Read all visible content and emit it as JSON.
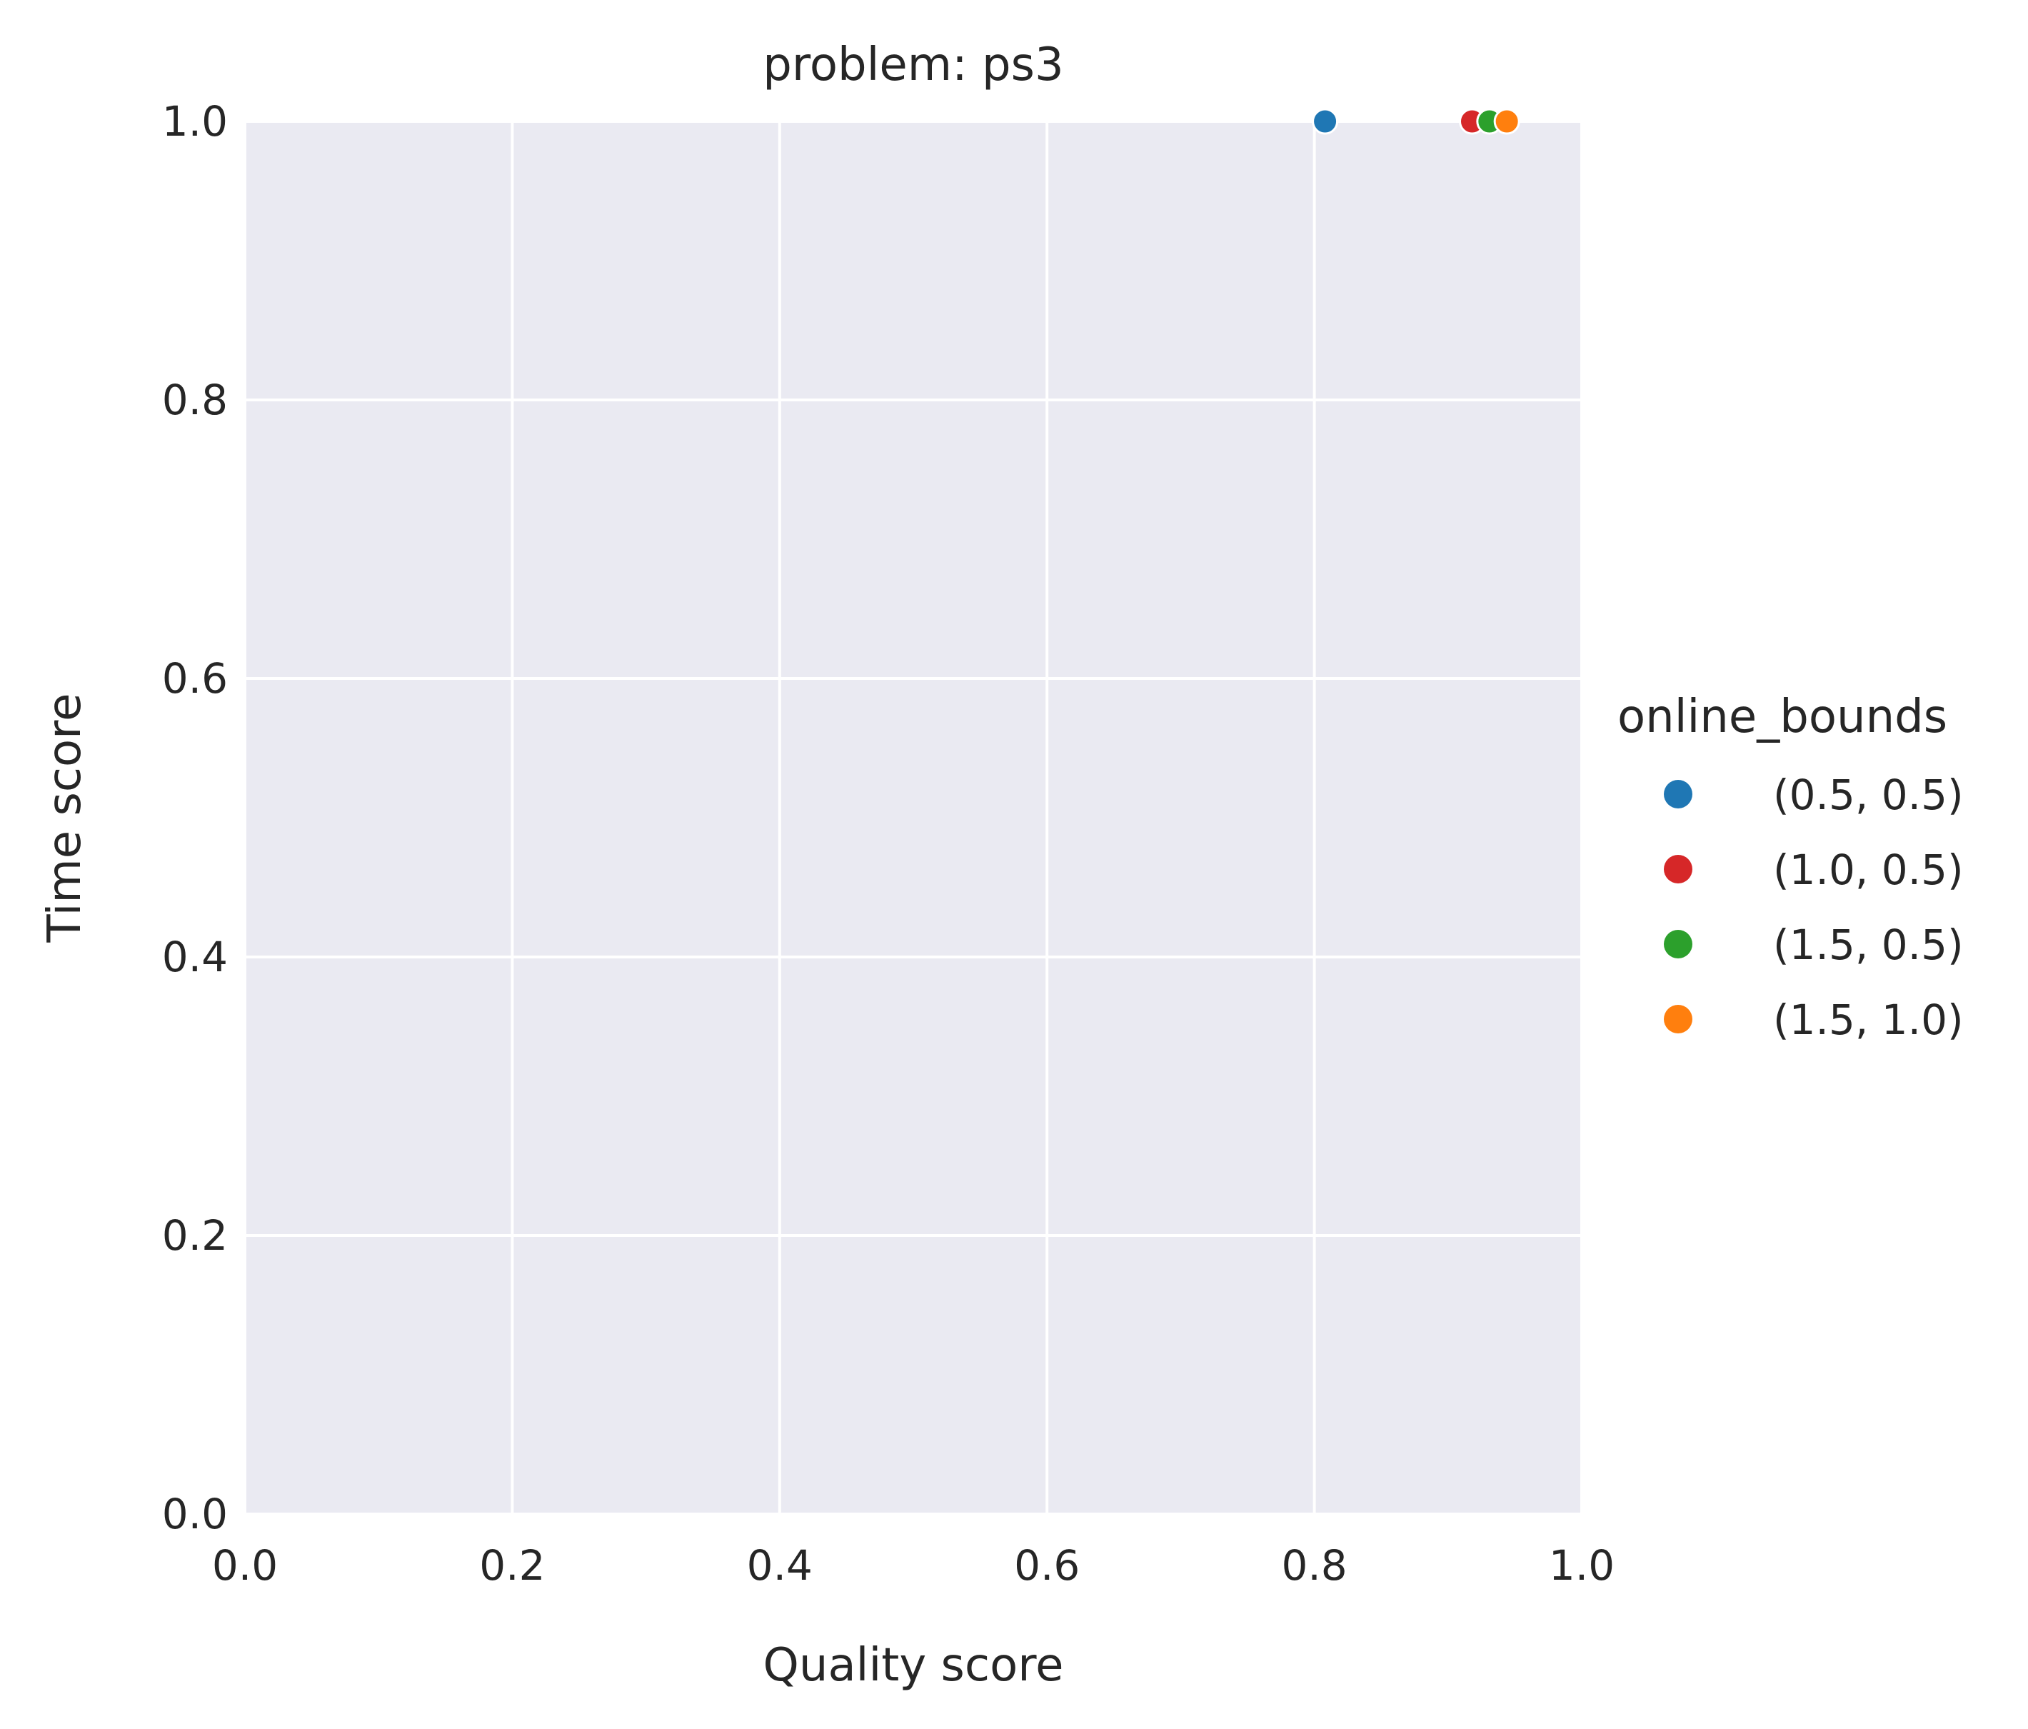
{
  "chart_data": {
    "type": "scatter",
    "title": "problem: ps3",
    "xlabel": "Quality score",
    "ylabel": "Time score",
    "xlim": [
      0.0,
      1.0
    ],
    "ylim": [
      0.0,
      1.0
    ],
    "xticks": [
      "0.0",
      "0.2",
      "0.4",
      "0.6",
      "0.8",
      "1.0"
    ],
    "yticks": [
      "0.0",
      "0.2",
      "0.4",
      "0.6",
      "0.8",
      "1.0"
    ],
    "grid": true,
    "background": "#eaeaf2",
    "legend": {
      "title": "online_bounds",
      "placement": "right"
    },
    "series": [
      {
        "name": "(0.5, 0.5)",
        "color": "#1f77b4",
        "points": [
          [
            0.808,
            1.0
          ]
        ]
      },
      {
        "name": "(1.0, 0.5)",
        "color": "#d62728",
        "points": [
          [
            0.918,
            1.0
          ]
        ]
      },
      {
        "name": "(1.5, 0.5)",
        "color": "#2ca02c",
        "points": [
          [
            0.931,
            1.0
          ]
        ]
      },
      {
        "name": "(1.5, 1.0)",
        "color": "#ff7f0e",
        "points": [
          [
            0.944,
            1.0
          ]
        ]
      }
    ]
  }
}
